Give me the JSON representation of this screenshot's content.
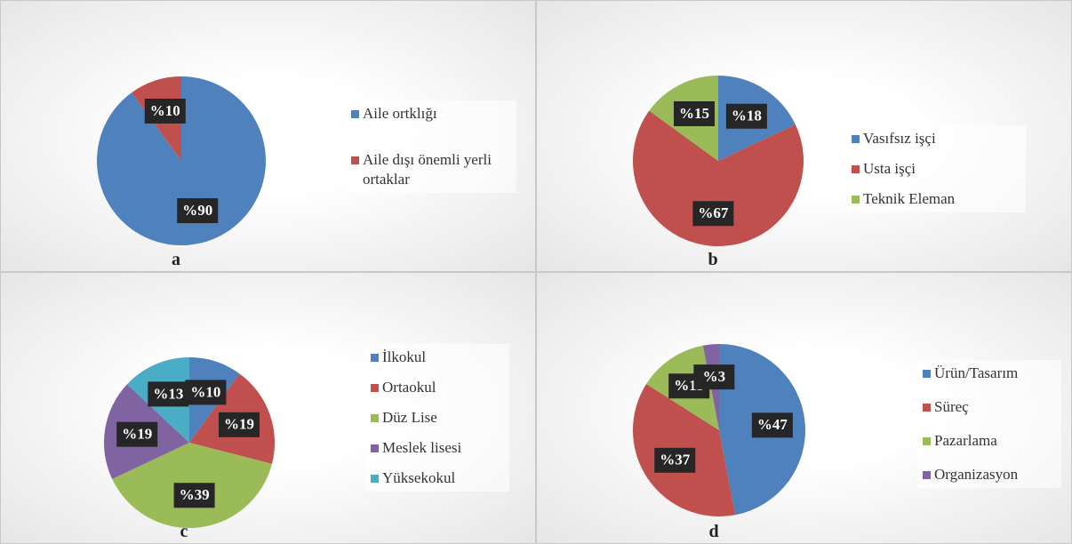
{
  "chart_data": [
    {
      "type": "pie",
      "title": "a",
      "categories": [
        "Aile ortklığı",
        "Aile dışı önemli yerli ortaklar"
      ],
      "values": [
        90,
        10
      ],
      "value_labels": [
        "%90",
        "%10"
      ],
      "colors": [
        "#4f81bd",
        "#c0504d"
      ]
    },
    {
      "type": "pie",
      "title": "b",
      "categories": [
        "Vasıfsız işçi",
        "Usta işçi",
        "Teknik Eleman"
      ],
      "values": [
        18,
        67,
        15
      ],
      "value_labels": [
        "%18",
        "%67",
        "%15"
      ],
      "colors": [
        "#4f81bd",
        "#c0504d",
        "#9bbb59"
      ]
    },
    {
      "type": "pie",
      "title": "c",
      "categories": [
        "İlkokul",
        "Ortaokul",
        "Düz Lise",
        "Meslek lisesi",
        "Yüksekokul"
      ],
      "values": [
        10,
        19,
        39,
        19,
        13
      ],
      "value_labels": [
        "%10",
        "%19",
        "%39",
        "%19",
        "%13"
      ],
      "colors": [
        "#4f81bd",
        "#c0504d",
        "#9bbb59",
        "#8064a2",
        "#4bacc6"
      ]
    },
    {
      "type": "pie",
      "title": "d",
      "categories": [
        "Ürün/Tasarım",
        "Süreç",
        "Pazarlama",
        "Organizasyon"
      ],
      "values": [
        47,
        37,
        13,
        3
      ],
      "value_labels": [
        "%47",
        "%37",
        "%13",
        "%3"
      ],
      "colors": [
        "#4f81bd",
        "#c0504d",
        "#9bbb59",
        "#8064a2"
      ]
    }
  ]
}
